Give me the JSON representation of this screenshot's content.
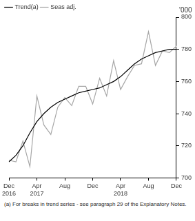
{
  "chart_data": {
    "type": "line",
    "categories": [
      "Dec 2016",
      null,
      null,
      null,
      "Apr 2017",
      null,
      null,
      null,
      "Aug",
      null,
      null,
      null,
      "Dec",
      null,
      null,
      null,
      "Apr 2018",
      null,
      null,
      null,
      "Aug",
      null,
      null,
      null,
      "Dec"
    ],
    "series": [
      {
        "name": "Trend(a)",
        "color": "#000000",
        "values": [
          710,
          714,
          720,
          728,
          735,
          740,
          744,
          747,
          749,
          751,
          753,
          754,
          755,
          756,
          758,
          760,
          763,
          767,
          771,
          774,
          776,
          778,
          779,
          780,
          780
        ]
      },
      {
        "name": "Seas adj.",
        "color": "#a6a6a6",
        "values": [
          711,
          710,
          723,
          707,
          751,
          733,
          727,
          744,
          750,
          745,
          757,
          757,
          746,
          762,
          751,
          773,
          755,
          763,
          770,
          771,
          791,
          770,
          779,
          778,
          782
        ]
      }
    ],
    "ylim": [
      700,
      800
    ],
    "yticks": [
      700,
      720,
      740,
      760,
      780,
      800
    ],
    "ylabel": "'000",
    "legend": "top-left",
    "grid": false,
    "annotations": [
      "(a) For breaks in trend series - see paragraph 29 of the Explanatory Notes."
    ]
  }
}
